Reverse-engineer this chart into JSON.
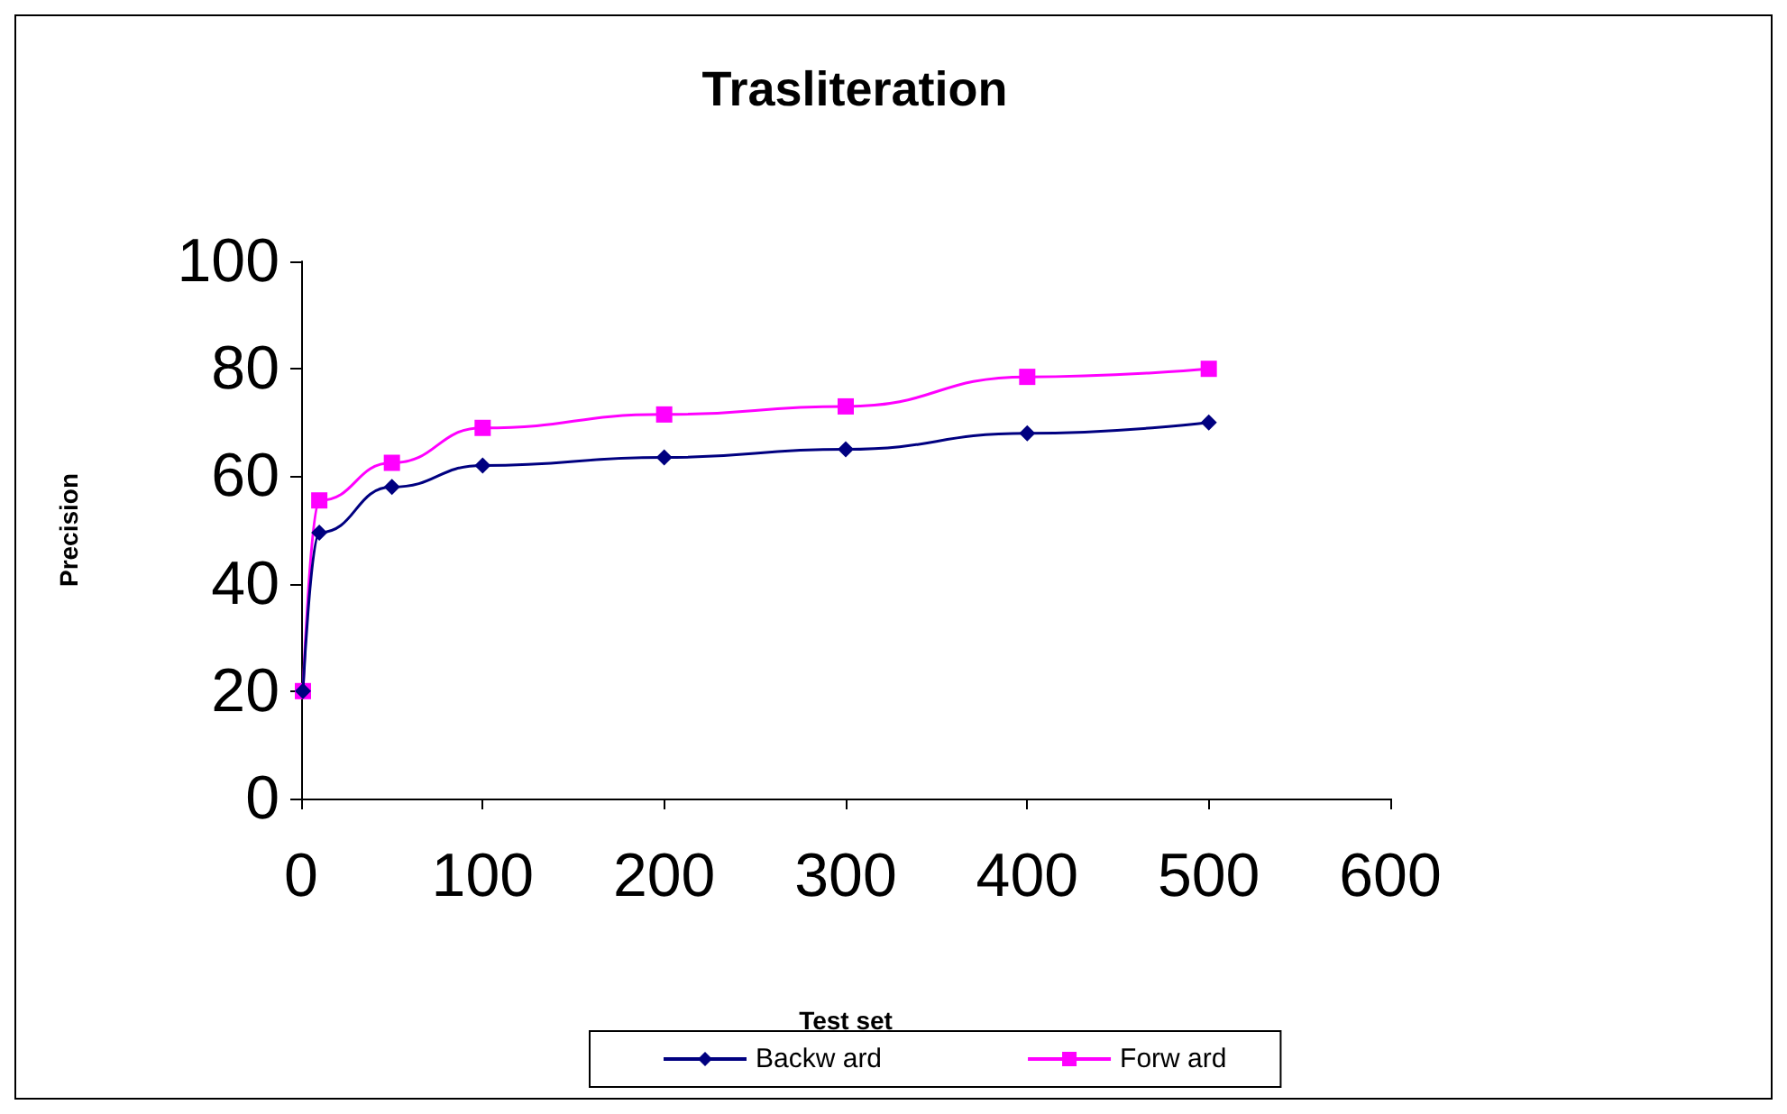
{
  "chart_data": {
    "type": "line",
    "title": "Trasliteration",
    "xlabel": "Test set",
    "ylabel": "Precision",
    "xlim": [
      0,
      600
    ],
    "xticks": [
      0,
      100,
      200,
      300,
      400,
      500,
      600
    ],
    "ylim": [
      0,
      100
    ],
    "yticks": [
      0,
      20,
      40,
      60,
      80,
      100
    ],
    "grid": false,
    "legend": "bottom",
    "line_style": "solid",
    "series": [
      {
        "name": "Backw ard",
        "color": "#000080",
        "marker": "diamond",
        "x": [
          1,
          10,
          50,
          100,
          200,
          300,
          400,
          500
        ],
        "values": [
          20,
          49.5,
          58,
          62,
          63.5,
          65,
          68,
          70
        ]
      },
      {
        "name": "Forw ard",
        "color": "#ff00ff",
        "marker": "square",
        "x": [
          1,
          10,
          50,
          100,
          200,
          300,
          400,
          500
        ],
        "values": [
          20,
          55.5,
          62.5,
          69,
          71.5,
          73,
          78.5,
          80
        ]
      }
    ]
  }
}
